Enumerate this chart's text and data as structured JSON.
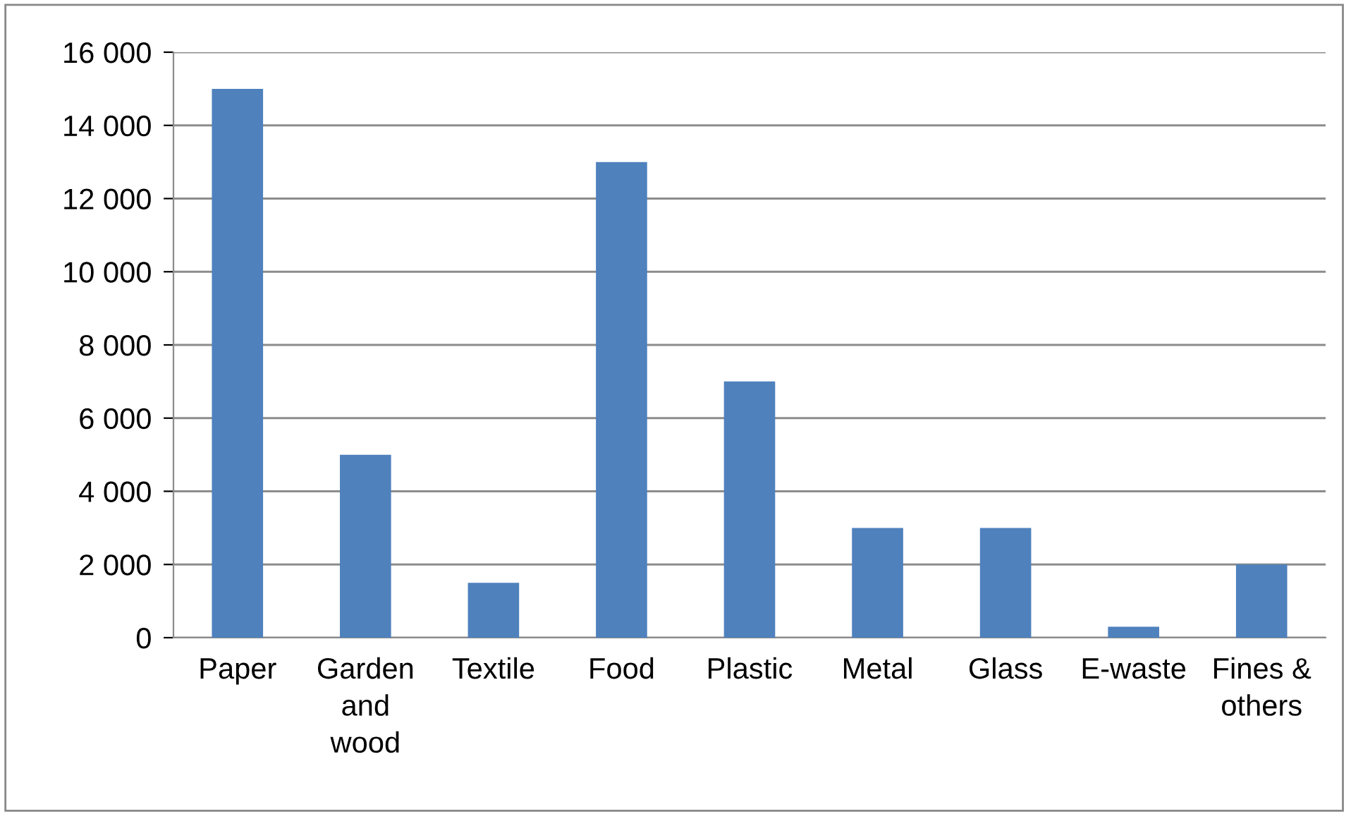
{
  "chart_data": {
    "type": "bar",
    "categories": [
      "Paper",
      "Garden\nand\nwood",
      "Textile",
      "Food",
      "Plastic",
      "Metal",
      "Glass",
      "E-waste",
      "Fines &\nothers"
    ],
    "values": [
      15000,
      5000,
      1500,
      13000,
      7000,
      3000,
      3000,
      300,
      2000
    ],
    "color": "#4f81bd",
    "ylim": [
      0,
      16000
    ],
    "yticks": [
      0,
      {
        "value": 2000,
        "label": "2 000"
      },
      {
        "value": 4000,
        "label": "4 000"
      },
      {
        "value": 6000,
        "label": "6 000"
      },
      {
        "value": 8000,
        "label": "8 000"
      },
      {
        "value": 10000,
        "label": "10 000"
      },
      {
        "value": 12000,
        "label": "12 000"
      },
      {
        "value": 14000,
        "label": "14 000"
      },
      {
        "value": 16000,
        "label": "16 000"
      }
    ],
    "grid": "y",
    "legend": false
  }
}
